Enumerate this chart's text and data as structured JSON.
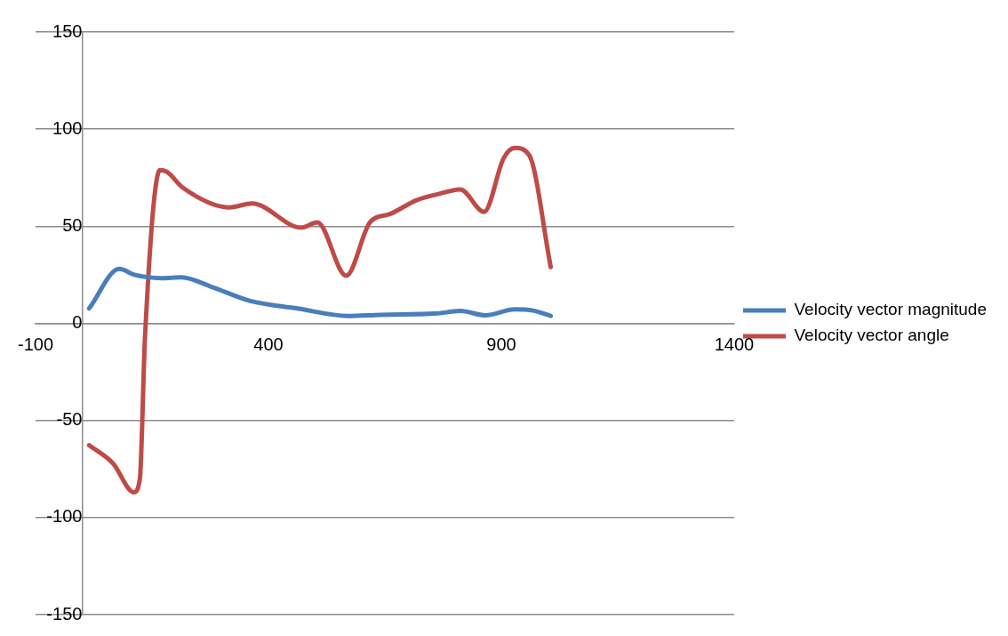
{
  "chart_data": {
    "type": "line",
    "xlim": [
      -100,
      1400
    ],
    "xticks": [
      -100,
      400,
      900,
      1400
    ],
    "ylim": [
      -150,
      150
    ],
    "yticks": [
      -150,
      -100,
      -50,
      0,
      50,
      100,
      150
    ],
    "grid": "y",
    "legend": "right",
    "marker": "none",
    "line_style": "solid",
    "series": [
      {
        "name": "Velocity vector magnitude",
        "color": "#4a7ebb",
        "x": [
          15,
          80,
          112,
          171,
          213,
          276,
          361,
          462,
          571,
          641,
          758,
          812,
          866,
          929,
          968,
          1006
        ],
        "values": [
          7.7,
          28,
          25,
          23.3,
          23.7,
          19,
          11.5,
          7.7,
          3.8,
          4.4,
          5,
          6.4,
          4.1,
          7.2,
          6.6,
          3.8
        ]
      },
      {
        "name": "Velocity vector angle",
        "color": "#be4b48",
        "x": [
          15,
          66,
          111,
          124,
          135,
          167,
          182,
          217,
          315,
          365,
          470,
          505,
          567,
          618,
          660,
          719,
          765,
          812,
          863,
          905,
          929,
          960,
          1006
        ],
        "values": [
          -62.8,
          -72,
          -87,
          -80,
          -7,
          78.9,
          78,
          69.7,
          59.7,
          61.7,
          49.3,
          52,
          24.5,
          52,
          56.2,
          63.5,
          66.6,
          68.9,
          57.4,
          85,
          90.3,
          86.5,
          29
        ]
      }
    ]
  }
}
